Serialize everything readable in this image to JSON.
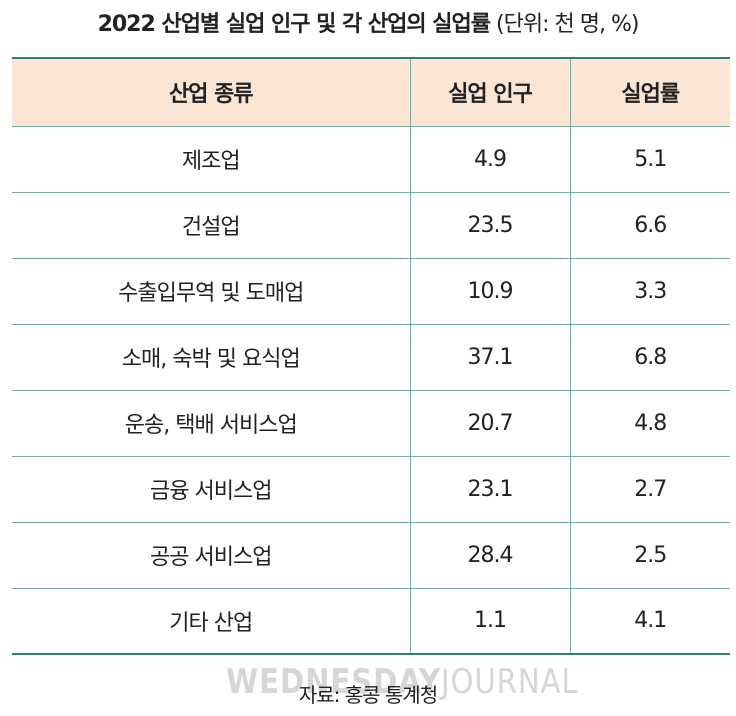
{
  "title": {
    "main": "2022 산업별 실업 인구 및 각 산업의 실업률",
    "unit": "(단위: 천 명, %)"
  },
  "table": {
    "headers": [
      "산업 종류",
      "실업 인구",
      "실업률"
    ],
    "rows": [
      [
        "제조업",
        "4.9",
        "5.1"
      ],
      [
        "건설업",
        "23.5",
        "6.6"
      ],
      [
        "수출입무역 및 도매업",
        "10.9",
        "3.3"
      ],
      [
        "소매, 숙박 및 요식업",
        "37.1",
        "6.8"
      ],
      [
        "운송, 택배 서비스업",
        "20.7",
        "4.8"
      ],
      [
        "금융 서비스업",
        "23.1",
        "2.7"
      ],
      [
        "공공 서비스업",
        "28.4",
        "2.5"
      ],
      [
        "기타 산업",
        "1.1",
        "4.1"
      ]
    ]
  },
  "watermark": {
    "bold": "WEDNESDAY",
    "thin": "JOURNAL"
  },
  "source": "자료: 홍콩 통계청",
  "colors": {
    "header_bg": "#fbe6d5",
    "rule": "#2f7d74",
    "grid": "#7aa8a2"
  }
}
